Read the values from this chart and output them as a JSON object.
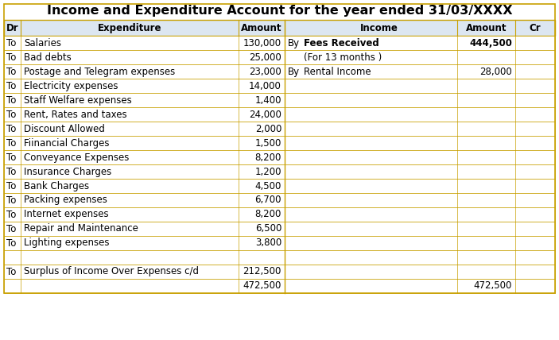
{
  "title": "Income and Expenditure Account for the year ended 31/03/XXXX",
  "header_bg": "#dce6f1",
  "border_color": "#c8a000",
  "title_fontsize": 11.5,
  "table_fontsize": 8.5,
  "left_col_header": "Dr",
  "left_col2_header": "Expenditure",
  "left_col3_header": "Amount",
  "right_col1_header": "Income",
  "right_col2_header": "Amount",
  "right_col3_header": "Cr",
  "expenditure_rows": [
    {
      "prefix": "To",
      "label": "Salaries",
      "amount": "130,000"
    },
    {
      "prefix": "To",
      "label": "Bad debts",
      "amount": "25,000"
    },
    {
      "prefix": "To",
      "label": "Postage and Telegram expenses",
      "amount": "23,000"
    },
    {
      "prefix": "To",
      "label": "Electricity expenses",
      "amount": "14,000"
    },
    {
      "prefix": "To",
      "label": "Staff Welfare expenses",
      "amount": "1,400"
    },
    {
      "prefix": "To",
      "label": "Rent, Rates and taxes",
      "amount": "24,000"
    },
    {
      "prefix": "To",
      "label": "Discount Allowed",
      "amount": "2,000"
    },
    {
      "prefix": "To",
      "label": "Fiinancial Charges",
      "amount": "1,500"
    },
    {
      "prefix": "To",
      "label": "Conveyance Expenses",
      "amount": "8,200"
    },
    {
      "prefix": "To",
      "label": "Insurance Charges",
      "amount": "1,200"
    },
    {
      "prefix": "To",
      "label": "Bank Charges",
      "amount": "4,500"
    },
    {
      "prefix": "To",
      "label": "Packing expenses",
      "amount": "6,700"
    },
    {
      "prefix": "To",
      "label": "Internet expenses",
      "amount": "8,200"
    },
    {
      "prefix": "To",
      "label": "Repair and Maintenance",
      "amount": "6,500"
    },
    {
      "prefix": "To",
      "label": "Lighting expenses",
      "amount": "3,800"
    },
    {
      "prefix": "",
      "label": "",
      "amount": ""
    },
    {
      "prefix": "To",
      "label": "Surplus of Income Over Expenses c/d",
      "amount": "212,500"
    },
    {
      "prefix": "",
      "label": "",
      "amount": "472,500"
    }
  ],
  "income_rows": [
    {
      "prefix": "By",
      "label": "Fees Received",
      "amount": "444,500",
      "bold": true
    },
    {
      "prefix": "",
      "label": "(For 13 months )",
      "amount": "",
      "bold": false
    },
    {
      "prefix": "By",
      "label": "Rental Income",
      "amount": "28,000",
      "bold": false
    },
    {
      "prefix": "",
      "label": "",
      "amount": "",
      "bold": false
    },
    {
      "prefix": "",
      "label": "",
      "amount": "",
      "bold": false
    },
    {
      "prefix": "",
      "label": "",
      "amount": "",
      "bold": false
    },
    {
      "prefix": "",
      "label": "",
      "amount": "",
      "bold": false
    },
    {
      "prefix": "",
      "label": "",
      "amount": "",
      "bold": false
    },
    {
      "prefix": "",
      "label": "",
      "amount": "",
      "bold": false
    },
    {
      "prefix": "",
      "label": "",
      "amount": "",
      "bold": false
    },
    {
      "prefix": "",
      "label": "",
      "amount": "",
      "bold": false
    },
    {
      "prefix": "",
      "label": "",
      "amount": "",
      "bold": false
    },
    {
      "prefix": "",
      "label": "",
      "amount": "",
      "bold": false
    },
    {
      "prefix": "",
      "label": "",
      "amount": "",
      "bold": false
    },
    {
      "prefix": "",
      "label": "",
      "amount": "",
      "bold": false
    },
    {
      "prefix": "",
      "label": "",
      "amount": "",
      "bold": false
    },
    {
      "prefix": "",
      "label": "",
      "amount": "",
      "bold": false
    },
    {
      "prefix": "",
      "label": "",
      "amount": "472,500",
      "bold": false
    }
  ]
}
